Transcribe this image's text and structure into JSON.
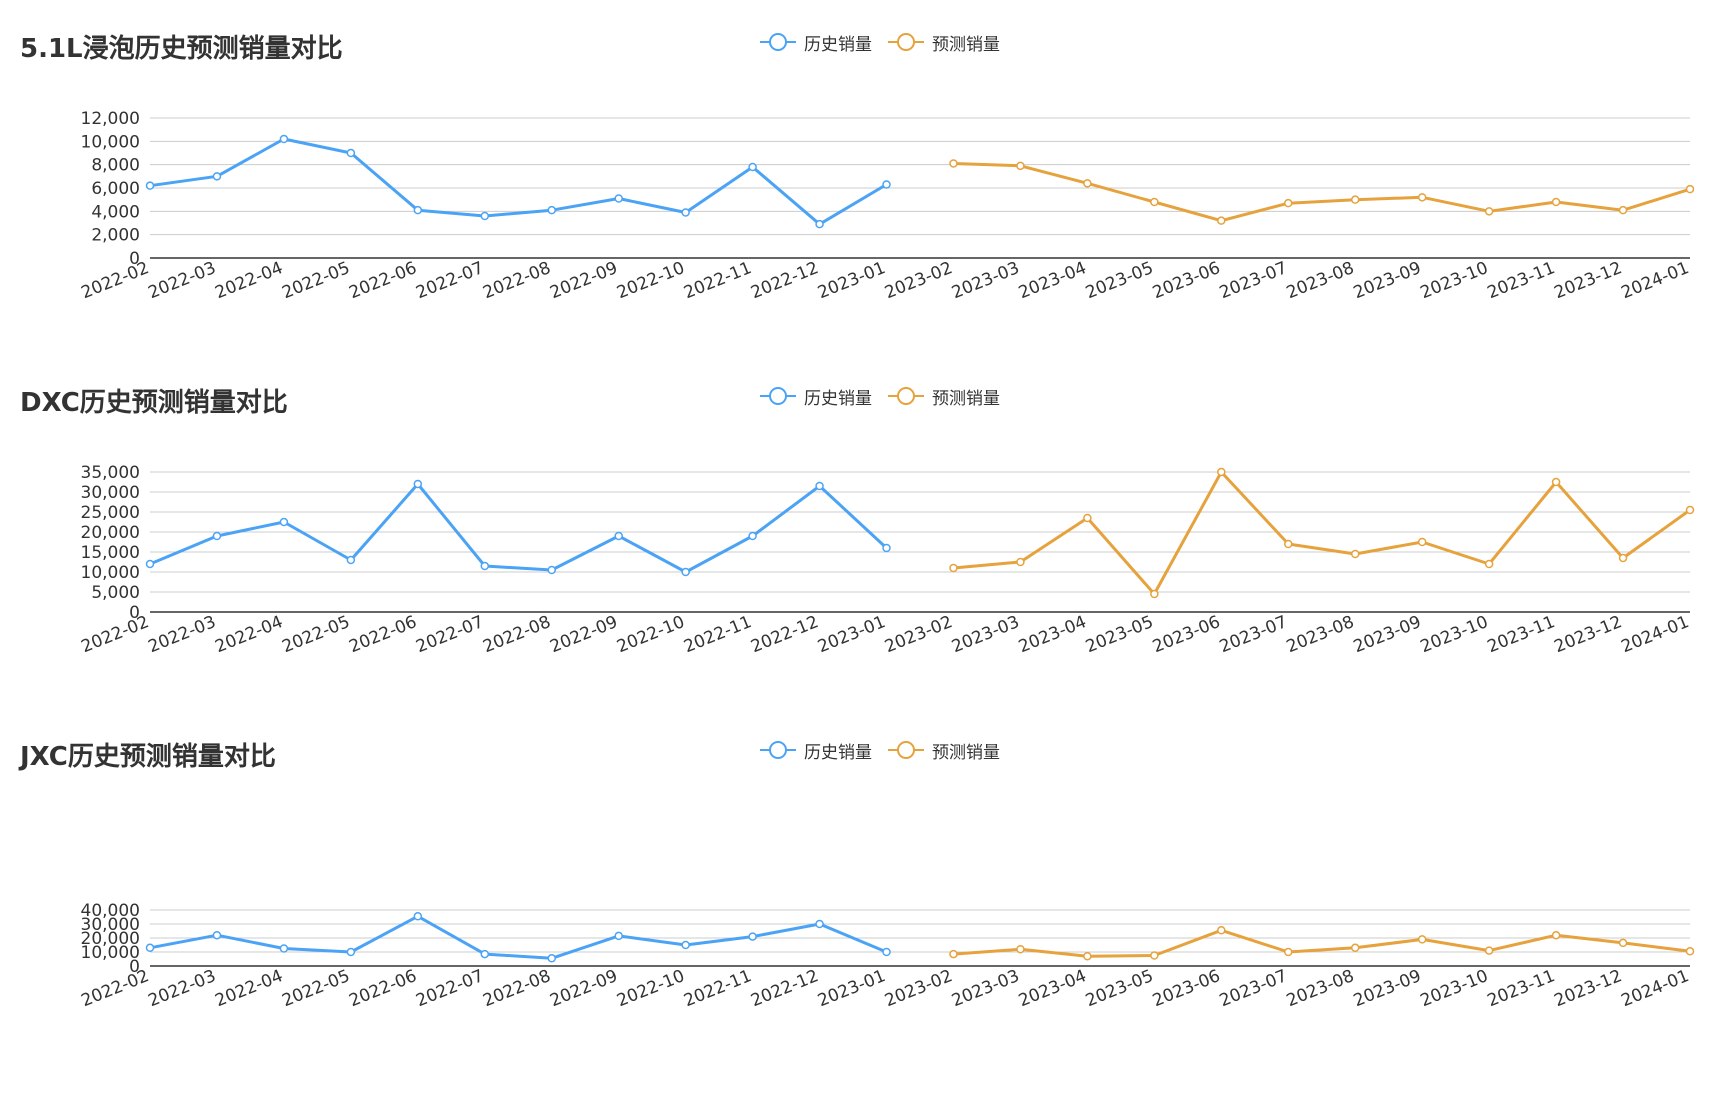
{
  "colors": {
    "history": "#4ba3f5",
    "forecast": "#e6a23c",
    "grid": "#cccccc",
    "axis": "#333333",
    "text": "#333333"
  },
  "legend": {
    "history": "历史销量",
    "forecast": "预测销量"
  },
  "chart_data": [
    {
      "type": "line",
      "title": "5.1L浸泡历史预测销量对比",
      "x": [
        "2022-02",
        "2022-03",
        "2022-04",
        "2022-05",
        "2022-06",
        "2022-07",
        "2022-08",
        "2022-09",
        "2022-10",
        "2022-11",
        "2022-12",
        "2023-01",
        "2023-02",
        "2023-03",
        "2023-04",
        "2023-05",
        "2023-06",
        "2023-07",
        "2023-08",
        "2023-09",
        "2023-10",
        "2023-11",
        "2023-12",
        "2024-01"
      ],
      "ylim": [
        0,
        12000
      ],
      "yticks": [
        0,
        2000,
        4000,
        6000,
        8000,
        10000,
        12000
      ],
      "ytick_labels": [
        "0",
        "2,000",
        "4,000",
        "6,000",
        "8,000",
        "10,000",
        "12,000"
      ],
      "grid": true,
      "legend_position": "top-center",
      "series": [
        {
          "name": "历史销量",
          "values": [
            6200,
            7000,
            10200,
            9000,
            4100,
            3600,
            4100,
            5100,
            3900,
            7800,
            2900,
            6300,
            null,
            null,
            null,
            null,
            null,
            null,
            null,
            null,
            null,
            null,
            null,
            null
          ]
        },
        {
          "name": "预测销量",
          "values": [
            null,
            null,
            null,
            null,
            null,
            null,
            null,
            null,
            null,
            null,
            null,
            null,
            8100,
            7900,
            6400,
            4800,
            3200,
            4700,
            5000,
            5200,
            4000,
            4800,
            4100,
            5900
          ]
        }
      ]
    },
    {
      "type": "line",
      "title": "DXC历史预测销量对比",
      "x": [
        "2022-02",
        "2022-03",
        "2022-04",
        "2022-05",
        "2022-06",
        "2022-07",
        "2022-08",
        "2022-09",
        "2022-10",
        "2022-11",
        "2022-12",
        "2023-01",
        "2023-02",
        "2023-03",
        "2023-04",
        "2023-05",
        "2023-06",
        "2023-07",
        "2023-08",
        "2023-09",
        "2023-10",
        "2023-11",
        "2023-12",
        "2024-01"
      ],
      "ylim": [
        0,
        35000
      ],
      "yticks": [
        0,
        5000,
        10000,
        15000,
        20000,
        25000,
        30000,
        35000
      ],
      "ytick_labels": [
        "0",
        "5,000",
        "10,000",
        "15,000",
        "20,000",
        "25,000",
        "30,000",
        "35,000"
      ],
      "grid": true,
      "legend_position": "top-center",
      "series": [
        {
          "name": "历史销量",
          "values": [
            12000,
            19000,
            22500,
            13000,
            32000,
            11500,
            10500,
            19000,
            10000,
            19000,
            31500,
            16000,
            null,
            null,
            null,
            null,
            null,
            null,
            null,
            null,
            null,
            null,
            null,
            null
          ]
        },
        {
          "name": "预测销量",
          "values": [
            null,
            null,
            null,
            null,
            null,
            null,
            null,
            null,
            null,
            null,
            null,
            null,
            11000,
            12500,
            23500,
            4500,
            35000,
            17000,
            14500,
            17500,
            12000,
            32500,
            13500,
            25500
          ]
        }
      ]
    },
    {
      "type": "line",
      "title": "JXC历史预测销量对比",
      "x": [
        "2022-02",
        "2022-03",
        "2022-04",
        "2022-05",
        "2022-06",
        "2022-07",
        "2022-08",
        "2022-09",
        "2022-10",
        "2022-11",
        "2022-12",
        "2023-01",
        "2023-02",
        "2023-03",
        "2023-04",
        "2023-05",
        "2023-06",
        "2023-07",
        "2023-08",
        "2023-09",
        "2023-10",
        "2023-11",
        "2023-12",
        "2024-01"
      ],
      "ylim": [
        0,
        40000
      ],
      "yticks": [
        0,
        10000,
        20000,
        30000,
        40000
      ],
      "ytick_labels": [
        "0",
        "10,000",
        "20,000",
        "30,000",
        "40,000"
      ],
      "grid": true,
      "legend_position": "top-center",
      "series": [
        {
          "name": "历史销量",
          "values": [
            13000,
            22000,
            12500,
            10000,
            35500,
            8500,
            5500,
            21500,
            15000,
            21000,
            30000,
            10000,
            null,
            null,
            null,
            null,
            null,
            null,
            null,
            null,
            null,
            null,
            null,
            null
          ]
        },
        {
          "name": "预测销量",
          "values": [
            null,
            null,
            null,
            null,
            null,
            null,
            null,
            null,
            null,
            null,
            null,
            null,
            8500,
            12000,
            7000,
            7500,
            25500,
            10000,
            13000,
            19000,
            11000,
            22000,
            16500,
            10500
          ]
        }
      ]
    }
  ]
}
